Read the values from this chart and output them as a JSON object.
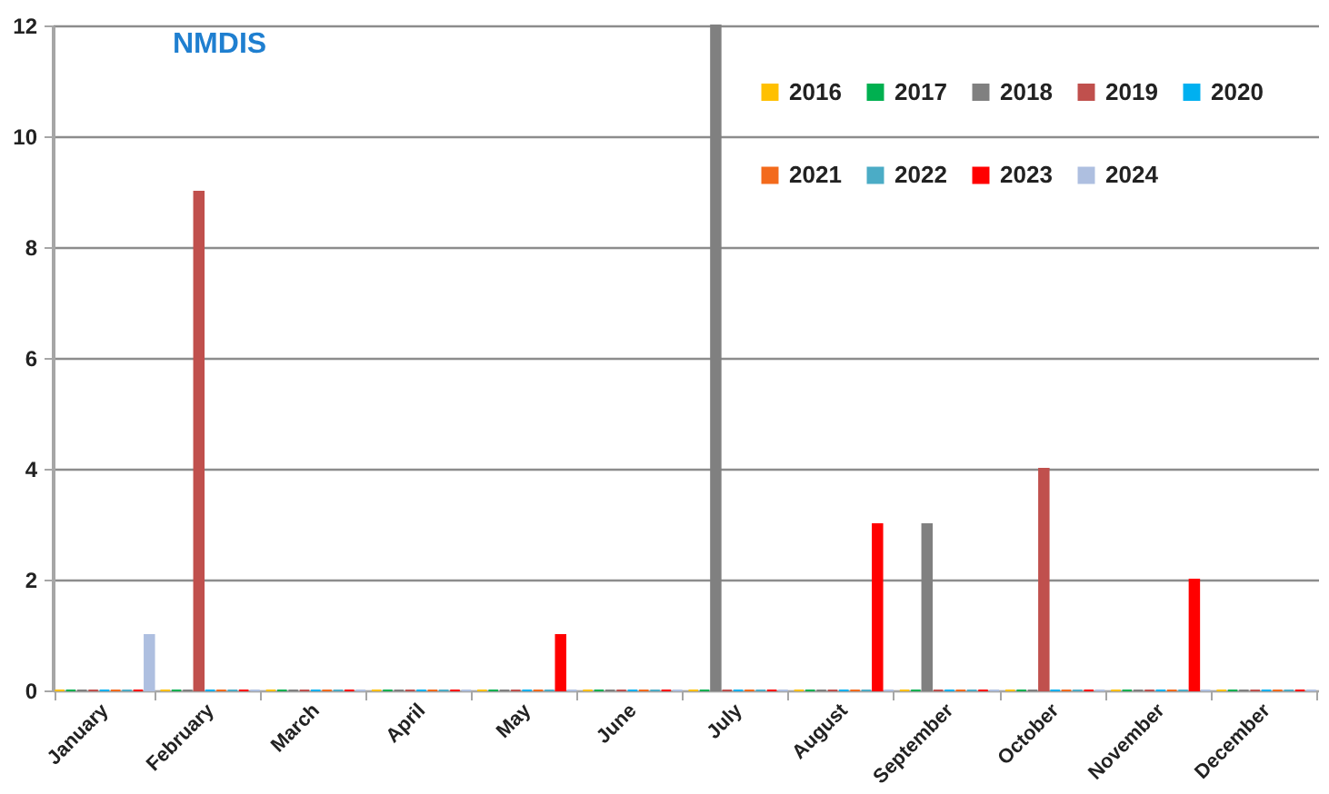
{
  "chart_data": {
    "type": "bar",
    "title": "NMDIS",
    "categories": [
      "January",
      "February",
      "March",
      "April",
      "May",
      "June",
      "July",
      "August",
      "September",
      "October",
      "November",
      "December"
    ],
    "series": [
      {
        "name": "2016",
        "color": "#ffc000",
        "values": [
          0,
          0,
          0,
          0,
          0,
          0,
          0,
          0,
          0,
          0,
          0,
          0
        ]
      },
      {
        "name": "2017",
        "color": "#00b050",
        "values": [
          0,
          0,
          0,
          0,
          0,
          0,
          0,
          0,
          0,
          0,
          0,
          0
        ]
      },
      {
        "name": "2018",
        "color": "#808080",
        "values": [
          0,
          0,
          0,
          0,
          0,
          0,
          12,
          0,
          3,
          0,
          0,
          0
        ]
      },
      {
        "name": "2019",
        "color": "#c0504d",
        "values": [
          0,
          9,
          0,
          0,
          0,
          0,
          0,
          0,
          0,
          4,
          0,
          0
        ]
      },
      {
        "name": "2020",
        "color": "#00b0f0",
        "values": [
          0,
          0,
          0,
          0,
          0,
          0,
          0,
          0,
          0,
          0,
          0,
          0
        ]
      },
      {
        "name": "2021",
        "color": "#f36a1c",
        "values": [
          0,
          0,
          0,
          0,
          0,
          0,
          0,
          0,
          0,
          0,
          0,
          0
        ]
      },
      {
        "name": "2022",
        "color": "#4bacc6",
        "values": [
          0,
          0,
          0,
          0,
          0,
          0,
          0,
          0,
          0,
          0,
          0,
          0
        ]
      },
      {
        "name": "2023",
        "color": "#ff0000",
        "values": [
          0,
          0,
          0,
          0,
          1,
          0,
          0,
          3,
          0,
          0,
          2,
          0
        ]
      },
      {
        "name": "2024",
        "color": "#aebfe0",
        "values": [
          1,
          0,
          0,
          0,
          0,
          0,
          0,
          0,
          0,
          0,
          0,
          0
        ]
      }
    ],
    "ylim": [
      0,
      12
    ],
    "yticks": [
      0,
      2,
      4,
      6,
      8,
      10,
      12
    ],
    "grid": "y",
    "legend": "top right"
  }
}
